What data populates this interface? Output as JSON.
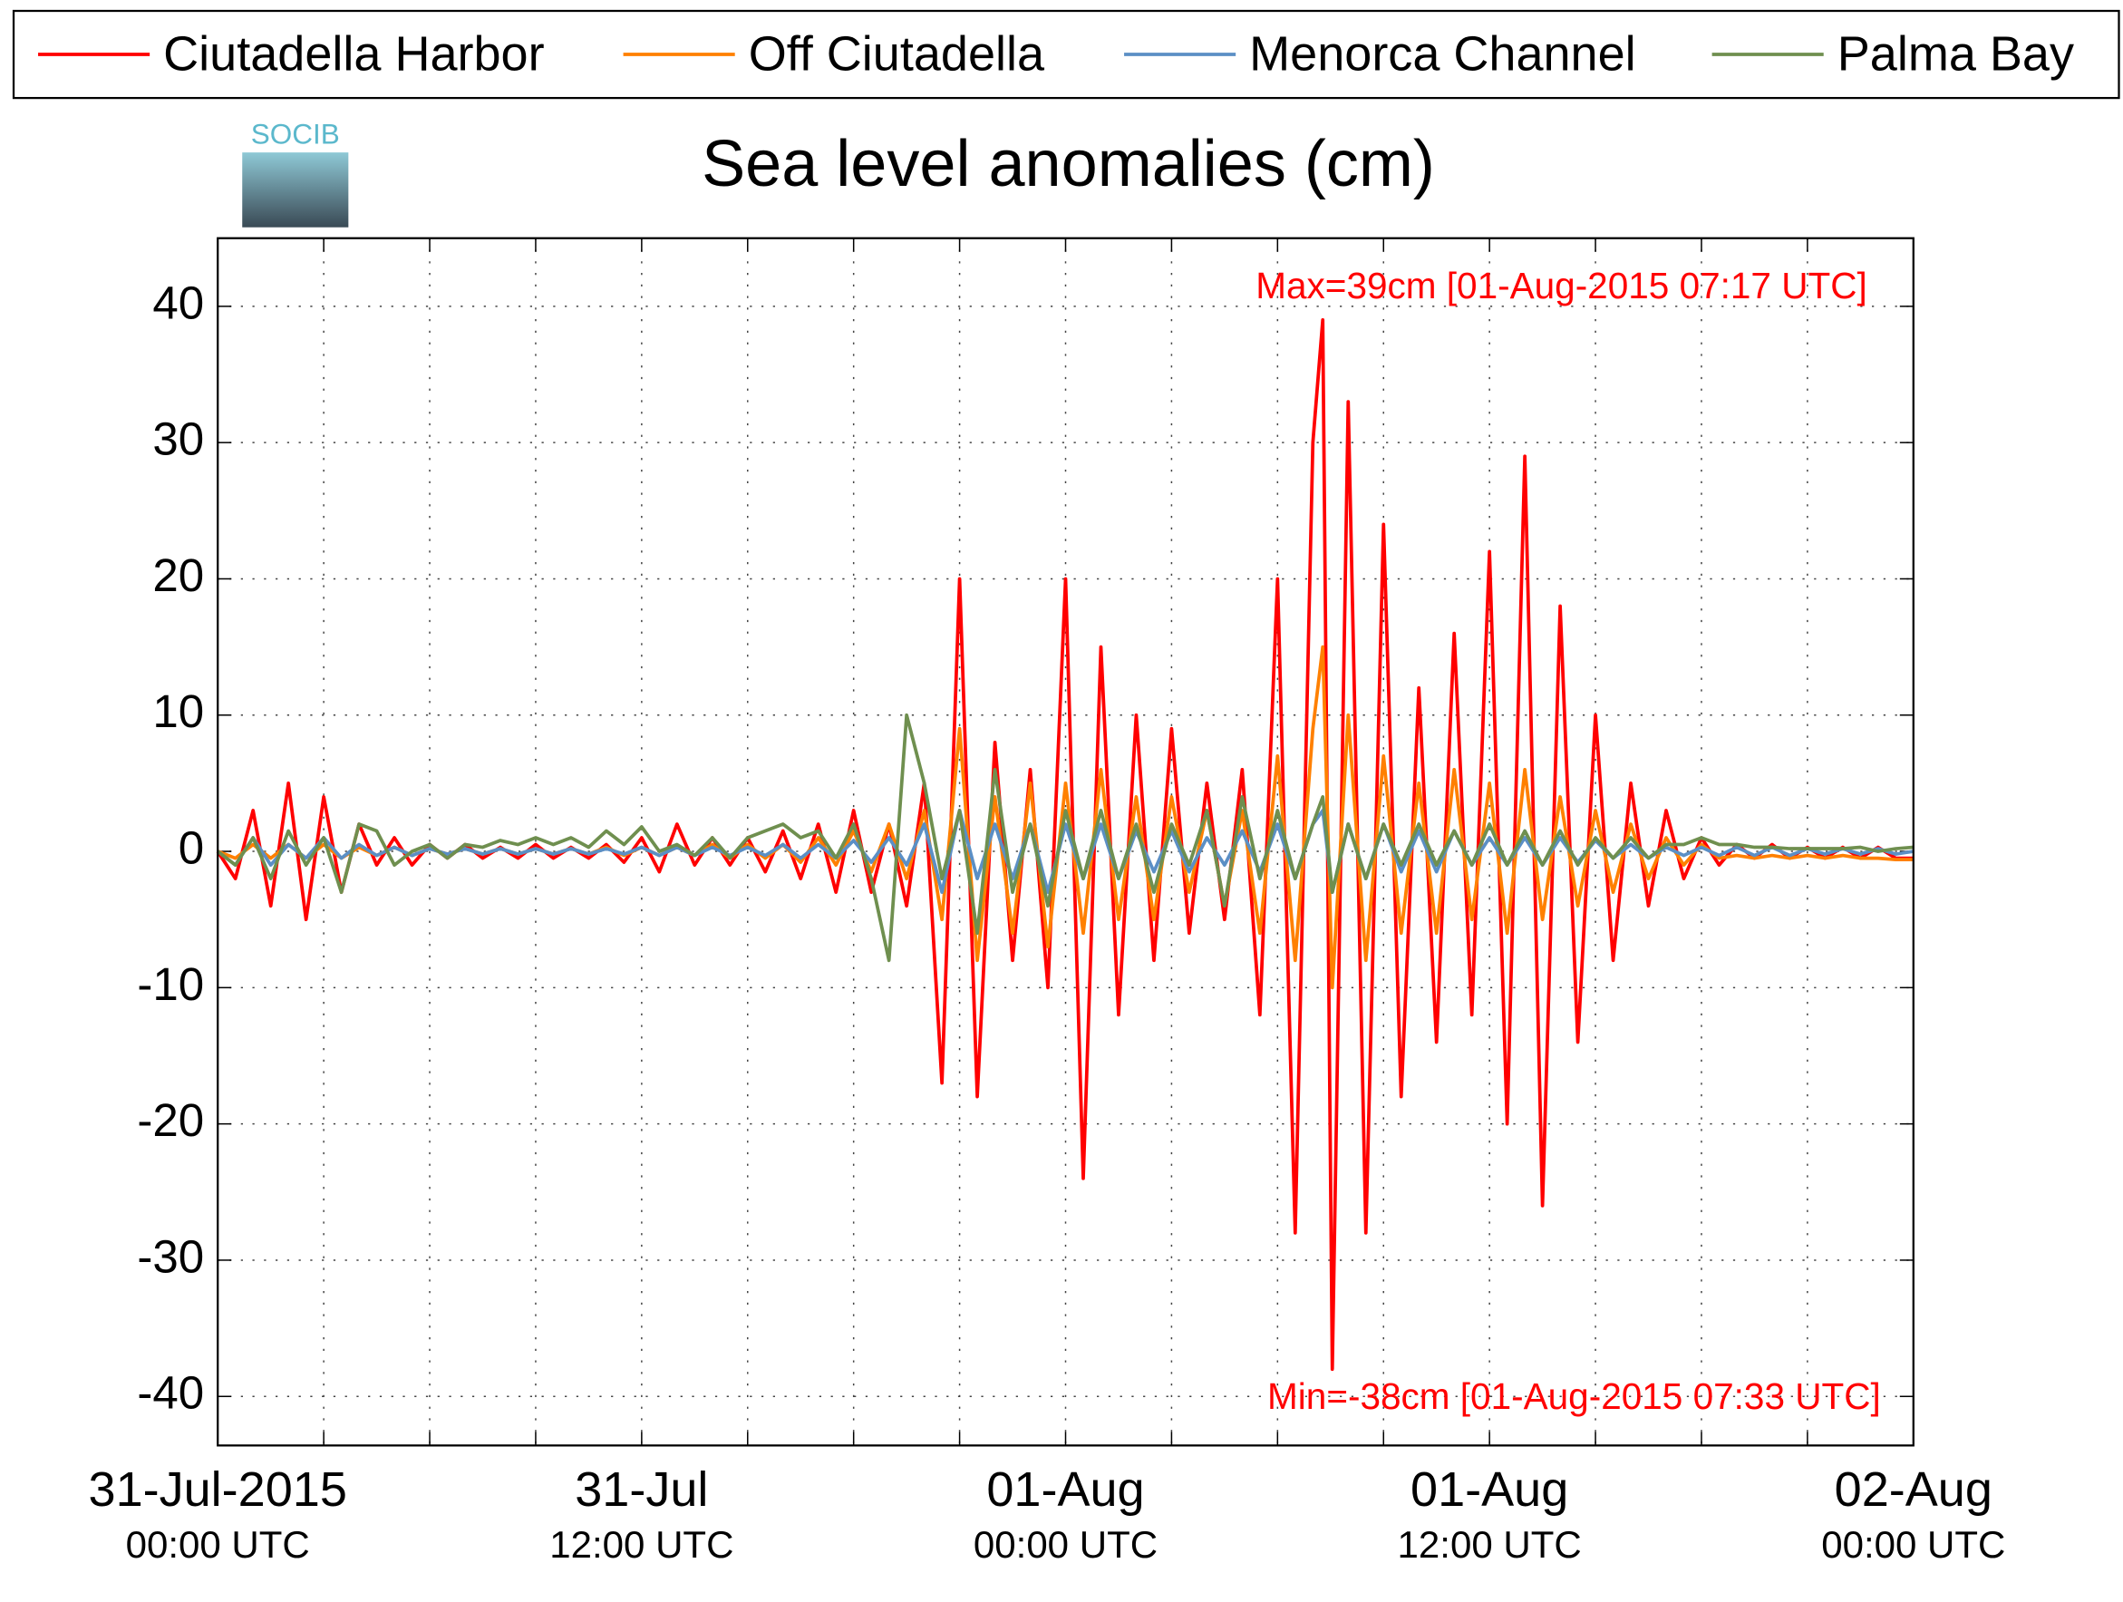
{
  "chart_data": {
    "type": "line",
    "title": "Sea level anomalies (cm)",
    "logo_text": "SOCIB",
    "annotations": [
      {
        "text": "Max=39cm [01-Aug-2015 07:17 UTC]",
        "color": "#ff0000"
      },
      {
        "text": "Min=-38cm [01-Aug-2015 07:33 UTC]",
        "color": "#ff0000"
      }
    ],
    "legend": "top",
    "grid": true,
    "xlim": [
      0,
      48
    ],
    "xticks": [
      {
        "value": 0,
        "label": [
          "31-Jul-2015",
          "00:00 UTC"
        ]
      },
      {
        "value": 12,
        "label": [
          "31-Jul",
          "12:00 UTC"
        ]
      },
      {
        "value": 24,
        "label": [
          "01-Aug",
          "00:00 UTC"
        ]
      },
      {
        "value": 36,
        "label": [
          "01-Aug",
          "12:00 UTC"
        ]
      },
      {
        "value": 48,
        "label": [
          "02-Aug",
          "00:00 UTC"
        ]
      }
    ],
    "xminorticks": [
      3,
      6,
      9,
      15,
      18,
      21,
      27,
      30,
      33,
      39,
      42,
      45
    ],
    "ylim": [
      -43.6,
      45
    ],
    "yticks": [
      -40,
      -30,
      -20,
      -10,
      0,
      10,
      20,
      30,
      40
    ],
    "x": [
      0,
      0.5,
      1,
      1.5,
      2,
      2.5,
      3,
      3.5,
      4,
      4.5,
      5,
      5.5,
      6,
      6.5,
      7,
      7.5,
      8,
      8.5,
      9,
      9.5,
      10,
      10.5,
      11,
      11.5,
      12,
      12.5,
      13,
      13.5,
      14,
      14.5,
      15,
      15.5,
      16,
      16.5,
      17,
      17.5,
      18,
      18.5,
      19,
      19.5,
      20,
      20.5,
      21,
      21.5,
      22,
      22.5,
      23,
      23.5,
      24,
      24.5,
      25,
      25.5,
      26,
      26.5,
      27,
      27.5,
      28,
      28.5,
      29,
      29.5,
      30,
      30.5,
      31,
      31.28,
      31.55,
      32,
      32.5,
      33,
      33.5,
      34,
      34.5,
      35,
      35.5,
      36,
      36.5,
      37,
      37.5,
      38,
      38.5,
      39,
      39.5,
      40,
      40.5,
      41,
      41.5,
      42,
      42.5,
      43,
      43.5,
      44,
      44.5,
      45,
      45.5,
      46,
      46.5,
      47,
      47.5,
      48
    ],
    "series": [
      {
        "name": "Ciutadella Harbor",
        "color": "#ff0000",
        "values": [
          0,
          -2,
          3,
          -4,
          5,
          -5,
          4,
          -3,
          2,
          -1,
          1,
          -1,
          0.5,
          -0.5,
          0.5,
          -0.5,
          0.3,
          -0.5,
          0.5,
          -0.5,
          0.3,
          -0.5,
          0.5,
          -0.8,
          1,
          -1.5,
          2,
          -1,
          1,
          -1,
          1,
          -1.5,
          1.5,
          -2,
          2,
          -3,
          3,
          -3,
          2,
          -4,
          5,
          -17,
          20,
          -18,
          8,
          -8,
          6,
          -10,
          20,
          -24,
          15,
          -12,
          10,
          -8,
          9,
          -6,
          5,
          -5,
          6,
          -12,
          20,
          -28,
          30,
          39,
          -38,
          33,
          -28,
          24,
          -18,
          12,
          -14,
          16,
          -12,
          22,
          -20,
          29,
          -26,
          18,
          -14,
          10,
          -8,
          5,
          -4,
          3,
          -2,
          1,
          -1,
          0.5,
          -0.5,
          0.5,
          -0.5,
          0.3,
          -0.5,
          0.3,
          -0.5,
          0.3,
          -0.5,
          -0.5
        ]
      },
      {
        "name": "Off Ciutadella",
        "color": "#ff8000",
        "values": [
          0,
          -0.5,
          0.5,
          -0.5,
          0.5,
          -0.5,
          0.5,
          -0.5,
          0.3,
          -0.3,
          0.3,
          -0.3,
          0.2,
          -0.2,
          0.2,
          -0.2,
          0.2,
          -0.2,
          0.2,
          -0.2,
          0.2,
          -0.2,
          0.3,
          -0.3,
          0.3,
          -0.3,
          0.3,
          -0.3,
          0.5,
          -0.5,
          0.5,
          -0.5,
          0.5,
          -0.8,
          1,
          -1,
          1.5,
          -1.5,
          2,
          -2,
          3,
          -5,
          9,
          -8,
          4,
          -6,
          5,
          -7,
          5,
          -6,
          6,
          -5,
          4,
          -5,
          4,
          -3,
          3,
          -4,
          3,
          -6,
          7,
          -8,
          9,
          15,
          -10,
          10,
          -8,
          7,
          -6,
          5,
          -6,
          6,
          -5,
          5,
          -6,
          6,
          -5,
          4,
          -4,
          3,
          -3,
          2,
          -2,
          1,
          -1,
          0.5,
          -0.5,
          -0.3,
          -0.5,
          -0.3,
          -0.5,
          -0.3,
          -0.5,
          -0.3,
          -0.5,
          -0.5,
          -0.6,
          -0.6
        ]
      },
      {
        "name": "Menorca Channel",
        "color": "#5b8fc5",
        "values": [
          0,
          -1,
          1,
          -1,
          0.5,
          -0.5,
          1,
          -0.5,
          0.5,
          -0.3,
          0.3,
          -0.3,
          0.2,
          -0.2,
          0.2,
          -0.2,
          0.2,
          -0.2,
          0.2,
          -0.2,
          0.2,
          -0.2,
          0.2,
          -0.2,
          0.3,
          -0.3,
          0.3,
          -0.3,
          0.3,
          -0.3,
          0.3,
          -0.3,
          0.5,
          -0.5,
          0.5,
          -0.5,
          0.8,
          -0.8,
          1,
          -1,
          2,
          -3,
          3,
          -2,
          2,
          -2,
          2,
          -3,
          2,
          -2,
          2,
          -2,
          1.5,
          -1.5,
          1.5,
          -1.5,
          1,
          -1,
          1.5,
          -1.5,
          2,
          -2,
          2,
          3,
          -3,
          2,
          -2,
          2,
          -1.5,
          1.5,
          -1.5,
          1.5,
          -1,
          1,
          -1,
          1,
          -1,
          1,
          -0.8,
          0.8,
          -0.5,
          0.5,
          -0.5,
          0.3,
          -0.3,
          0.3,
          -0.3,
          0.3,
          -0.3,
          0.3,
          -0.3,
          0.2,
          -0.2,
          0.2,
          -0.2,
          0.2,
          -0.2,
          0
        ]
      },
      {
        "name": "Palma Bay",
        "color": "#6f8f4f",
        "values": [
          0,
          -1,
          1,
          -2,
          1.5,
          -1,
          1,
          -3,
          2,
          1.5,
          -1,
          0,
          0.5,
          -0.5,
          0.5,
          0.3,
          0.8,
          0.5,
          1,
          0.5,
          1,
          0.3,
          1.5,
          0.5,
          1.8,
          0,
          0.5,
          -0.3,
          1,
          -0.5,
          1,
          1.5,
          2,
          1,
          1.5,
          -0.5,
          2,
          -2,
          -8,
          10,
          5,
          -2,
          3,
          -6,
          6,
          -3,
          2,
          -4,
          3,
          -2,
          3,
          -2,
          2,
          -3,
          2,
          -1,
          3,
          -4,
          4,
          -2,
          3,
          -2,
          2,
          4,
          -3,
          2,
          -2,
          2,
          -1,
          2,
          -1,
          1.5,
          -1,
          2,
          -1,
          1.5,
          -1,
          1.5,
          -1,
          1,
          -0.5,
          1,
          -0.5,
          0.5,
          0.5,
          1,
          0.5,
          0.5,
          0.3,
          0.3,
          0.2,
          0.2,
          0.2,
          0.2,
          0.3,
          0,
          0.2,
          0.3
        ]
      }
    ]
  }
}
